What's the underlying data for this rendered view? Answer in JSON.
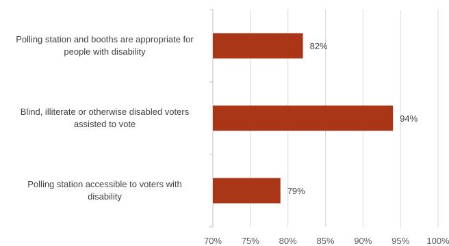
{
  "chart_data": {
    "type": "bar",
    "orientation": "horizontal",
    "categories": [
      [
        "Polling station and booths are appropriate for",
        "people with disability"
      ],
      [
        "Blind, illiterate or otherwise disabled voters",
        "assisted to vote"
      ],
      [
        "Polling station accessible to voters with",
        "disability"
      ]
    ],
    "series": [
      {
        "values": [
          82,
          94,
          79
        ],
        "data_labels": [
          "82%",
          "94%",
          "79%"
        ]
      }
    ],
    "xlim": [
      70,
      100
    ],
    "ticks": [
      70,
      75,
      80,
      85,
      90,
      95,
      100
    ],
    "tick_labels": [
      "70%",
      "75%",
      "80%",
      "85%",
      "90%",
      "95%",
      "100%"
    ],
    "title": "",
    "xlabel": "",
    "ylabel": "",
    "grid": true,
    "legend": "none",
    "colors": {
      "bar": "#A93617",
      "grid": "#D9D9D9",
      "axis": "#BFBFBF"
    }
  }
}
